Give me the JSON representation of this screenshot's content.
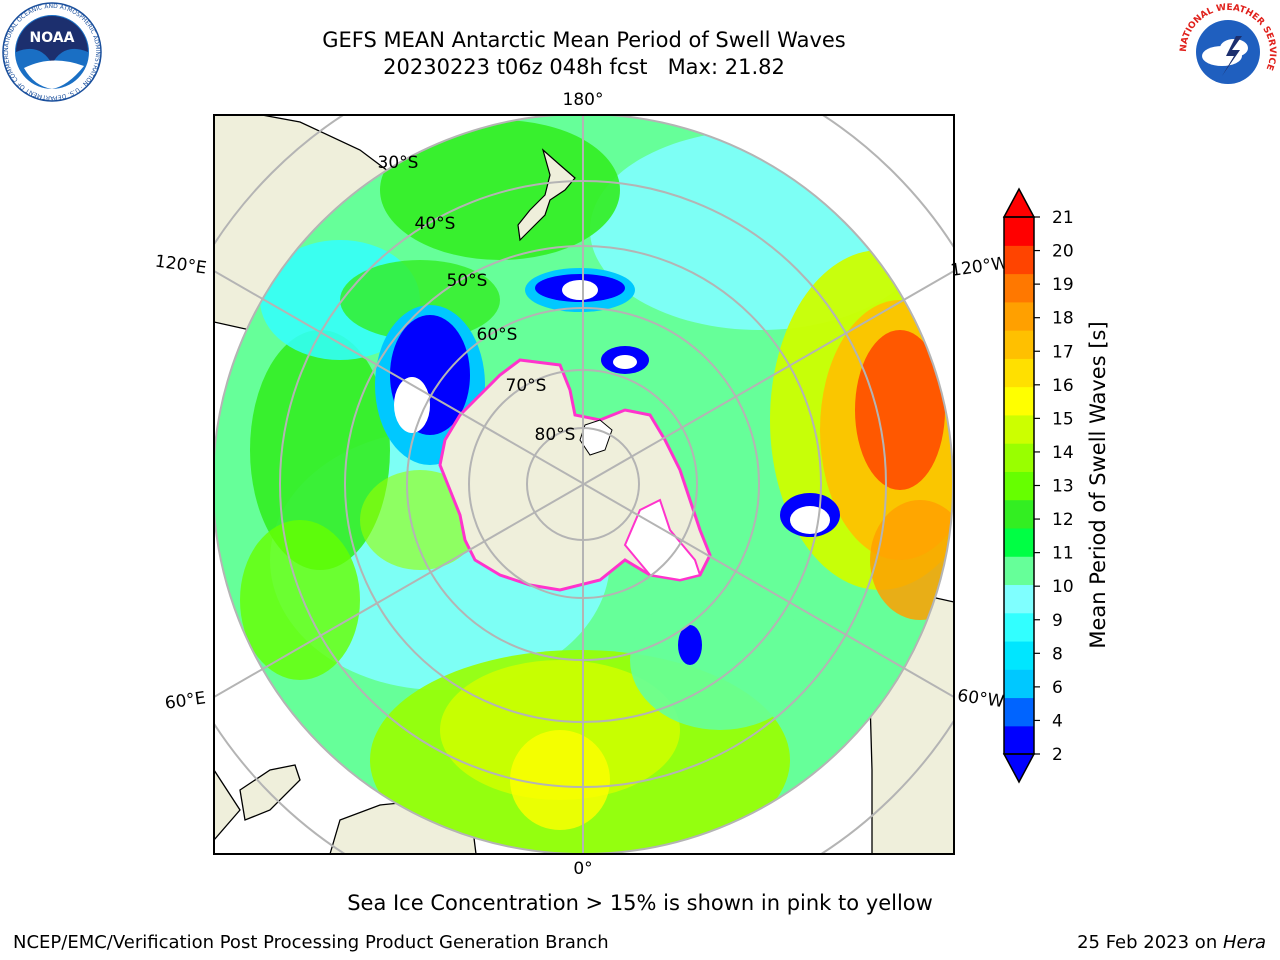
{
  "header": {
    "title_line1": "GEFS MEAN Antarctic Mean Period of Swell Waves",
    "title_line2": "20230223 t06z 048h fcst   Max: 21.82"
  },
  "logos": {
    "left": "NOAA",
    "left_ring": "NATIONAL OCEANIC AND ATMOSPHERIC ADMINISTRATION · U.S. DEPARTMENT OF COMMERCE",
    "right_ring": "NATIONAL WEATHER SERVICE"
  },
  "map": {
    "projection": "south-polar-stereographic",
    "longitude_labels": [
      "180°",
      "120°E",
      "120°W",
      "60°E",
      "60°W",
      "0°"
    ],
    "latitude_labels": [
      "30°S",
      "40°S",
      "50°S",
      "60°S",
      "70°S",
      "80°S"
    ]
  },
  "colorbar": {
    "label": "Mean Period of Swell Waves [s]",
    "ticks": [
      "2",
      "4",
      "6",
      "8",
      "9",
      "10",
      "11",
      "12",
      "13",
      "14",
      "15",
      "16",
      "17",
      "18",
      "19",
      "20",
      "21"
    ],
    "colors": [
      "#0000ff",
      "#0064ff",
      "#00c8ff",
      "#00e6ff",
      "#32ffff",
      "#7fffff",
      "#66ff99",
      "#00ff44",
      "#33ee22",
      "#66ff00",
      "#99ff00",
      "#ccff00",
      "#ffff00",
      "#ffe000",
      "#ffc000",
      "#ffa000",
      "#ff7800",
      "#ff4400",
      "#ff0000"
    ],
    "extend_min_color": "#0000ff",
    "extend_max_color": "#ff0000"
  },
  "ice_note": "Sea Ice Concentration > 15% is shown in pink to yellow",
  "footer": {
    "credit": "NCEP/EMC/Verification Post Processing Product Generation Branch",
    "date": "25 Feb 2023 on ",
    "machine": "Hera"
  }
}
